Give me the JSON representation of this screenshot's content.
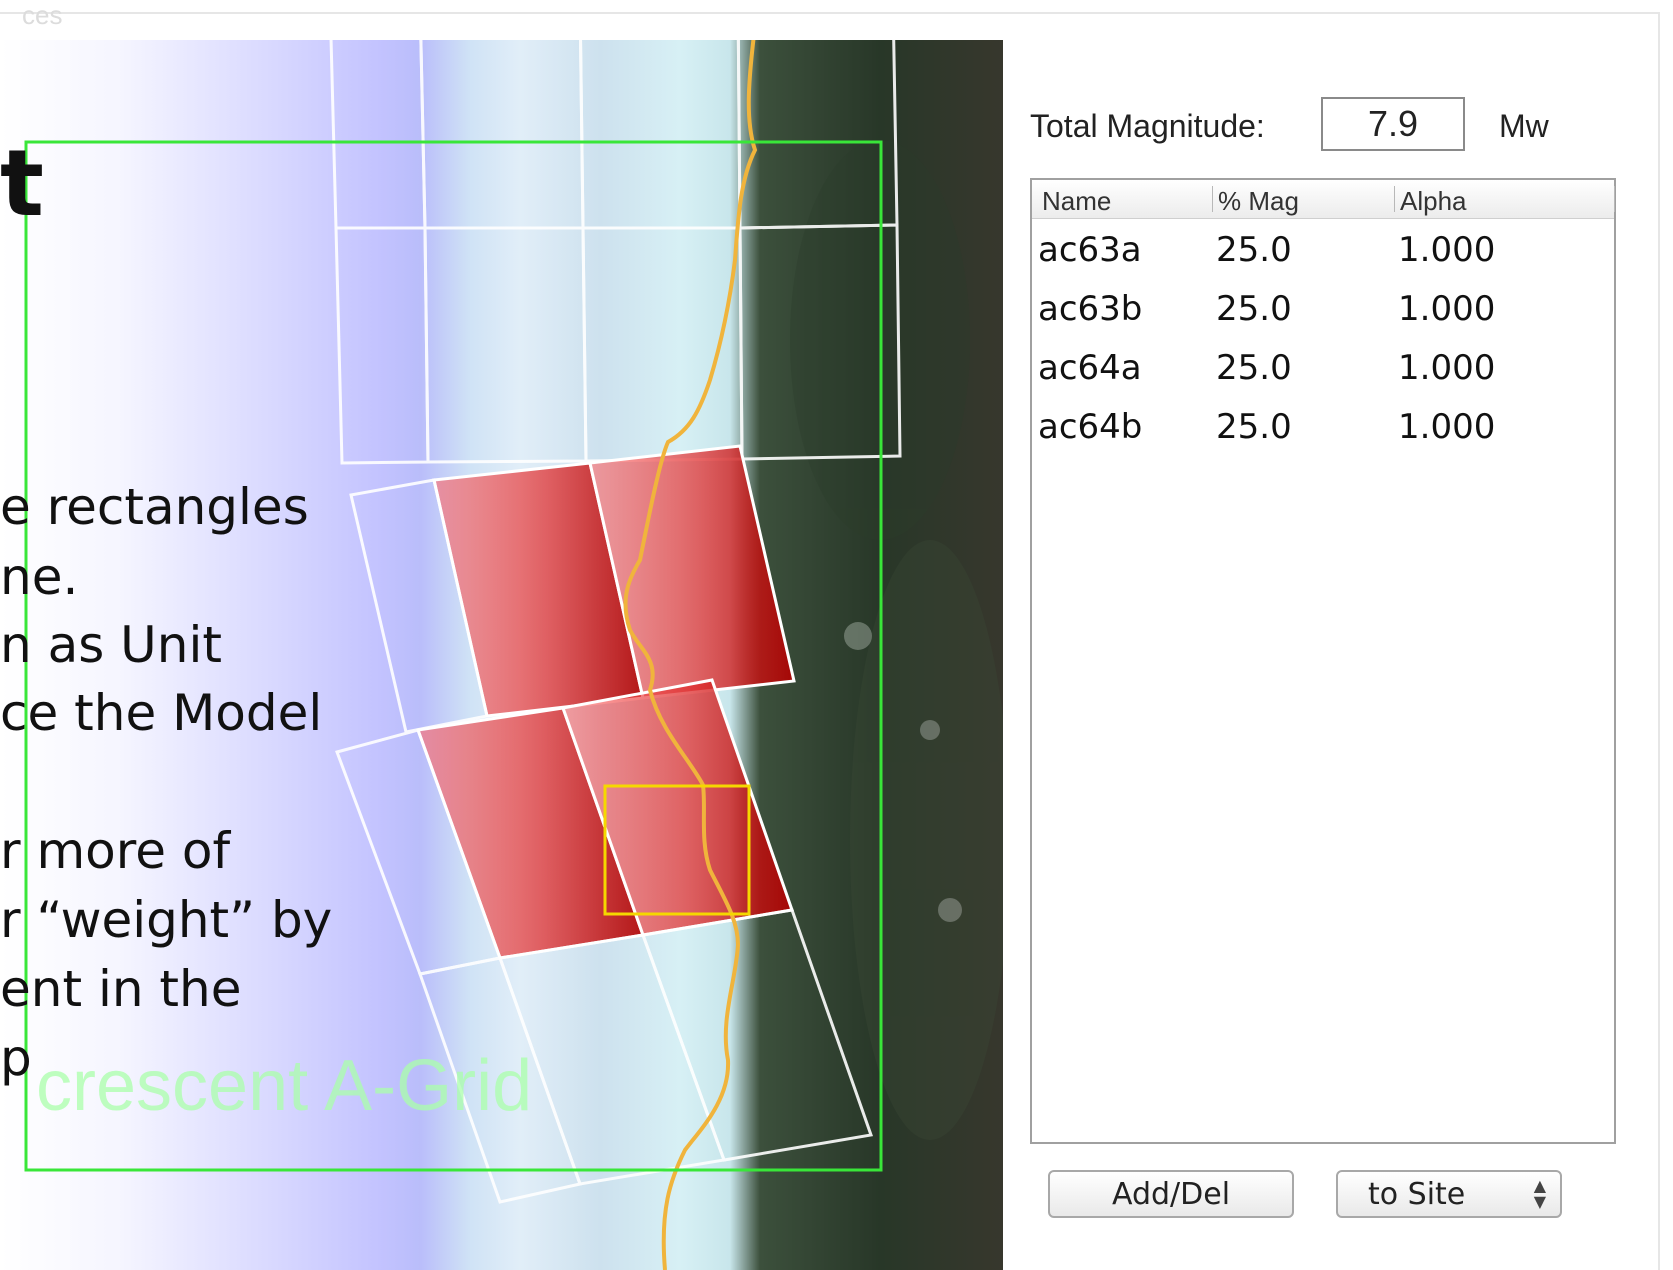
{
  "window": {
    "faded_title": "ces"
  },
  "slide": {
    "heading": "t",
    "lines": [
      "e rectangles",
      "ne.",
      "n as Unit",
      "ce the Model",
      "r more of",
      "r “weight” by",
      "ent in the",
      "p"
    ]
  },
  "map": {
    "grid_label": "crescent A-Grid",
    "colors": {
      "selection_box": "#39e639",
      "highlight_box": "#f5d800",
      "coastline": "#f0b43c",
      "grid_lines": "#ffffff",
      "selected_fill": "#d01010"
    }
  },
  "magnitude": {
    "label": "Total Magnitude:",
    "value": "7.9",
    "unit": "Mw"
  },
  "table": {
    "columns": [
      "Name",
      "% Mag",
      "Alpha"
    ],
    "rows": [
      {
        "name": "ac63a",
        "mag": "25.0",
        "alpha": "1.000"
      },
      {
        "name": "ac63b",
        "mag": "25.0",
        "alpha": "1.000"
      },
      {
        "name": "ac64a",
        "mag": "25.0",
        "alpha": "1.000"
      },
      {
        "name": "ac64b",
        "mag": "25.0",
        "alpha": "1.000"
      }
    ]
  },
  "buttons": {
    "add_del": "Add/Del",
    "target_select": "to Site"
  }
}
